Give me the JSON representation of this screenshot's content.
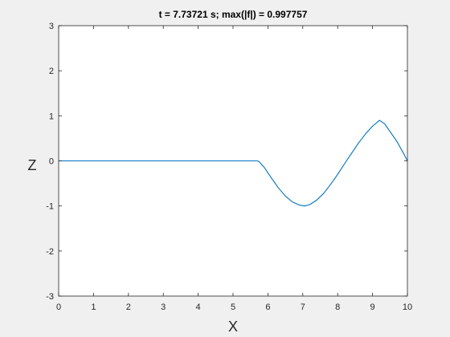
{
  "chart_data": {
    "type": "line",
    "title": "t = 7.73721 s;  max(|f|) = 0.997757",
    "xlabel": "X",
    "ylabel": "Z",
    "xlim": [
      0,
      10
    ],
    "ylim": [
      -3,
      3
    ],
    "xticks": [
      0,
      1,
      2,
      3,
      4,
      5,
      6,
      7,
      8,
      9,
      10
    ],
    "yticks": [
      -3,
      -2,
      -1,
      0,
      1,
      2,
      3
    ],
    "grid": false,
    "series": [
      {
        "color": "#0072bd",
        "x": [
          0,
          5.7,
          5.75,
          5.9,
          6.1,
          6.3,
          6.5,
          6.7,
          6.9,
          7.05,
          7.2,
          7.4,
          7.6,
          7.8,
          8.0,
          8.2,
          8.4,
          8.6,
          8.8,
          9.0,
          9.2,
          9.35,
          9.5,
          9.7,
          9.9,
          10.0
        ],
        "y": [
          0,
          0,
          -0.02,
          -0.15,
          -0.38,
          -0.6,
          -0.78,
          -0.91,
          -0.98,
          -1.0,
          -0.97,
          -0.87,
          -0.72,
          -0.52,
          -0.3,
          -0.06,
          0.17,
          0.4,
          0.6,
          0.77,
          0.9,
          0.82,
          0.65,
          0.43,
          0.15,
          0.0
        ]
      }
    ]
  },
  "colors": {
    "figure_background": "#f0f0f0",
    "axes_background": "#ffffff",
    "axes_color": "#262626"
  }
}
